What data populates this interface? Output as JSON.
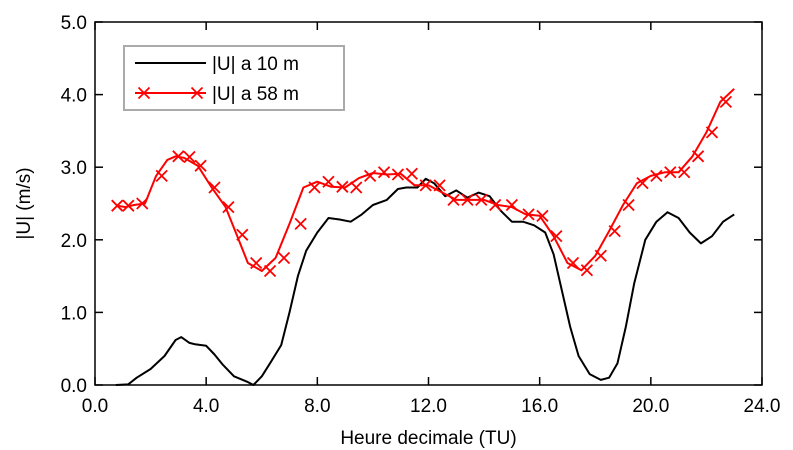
{
  "chart_data": {
    "type": "line",
    "xlabel": "Heure decimale (TU)",
    "ylabel": "|U| (m/s)",
    "xlim": [
      0,
      24
    ],
    "ylim": [
      0,
      5
    ],
    "x_ticks": [
      "0.0",
      "4.0",
      "8.0",
      "12.0",
      "16.0",
      "20.0",
      "24.0"
    ],
    "y_ticks": [
      "0.0",
      "1.0",
      "2.0",
      "3.0",
      "4.0",
      "5.0"
    ],
    "legend": {
      "position": "top-left"
    },
    "grid": false,
    "series": [
      {
        "name": "|U| a 10 m",
        "color": "#000000",
        "marker": "none",
        "points": [
          [
            0.75,
            0.0
          ],
          [
            1.2,
            0.01
          ],
          [
            1.5,
            0.1
          ],
          [
            2.0,
            0.22
          ],
          [
            2.5,
            0.4
          ],
          [
            2.9,
            0.62
          ],
          [
            3.1,
            0.66
          ],
          [
            3.4,
            0.58
          ],
          [
            3.6,
            0.56
          ],
          [
            4.0,
            0.54
          ],
          [
            4.3,
            0.42
          ],
          [
            4.6,
            0.28
          ],
          [
            5.0,
            0.12
          ],
          [
            5.5,
            0.04
          ],
          [
            5.7,
            0.0
          ],
          [
            6.0,
            0.12
          ],
          [
            6.3,
            0.3
          ],
          [
            6.7,
            0.55
          ],
          [
            7.0,
            1.0
          ],
          [
            7.3,
            1.5
          ],
          [
            7.6,
            1.85
          ],
          [
            8.0,
            2.1
          ],
          [
            8.4,
            2.3
          ],
          [
            8.8,
            2.28
          ],
          [
            9.2,
            2.25
          ],
          [
            9.6,
            2.35
          ],
          [
            10.0,
            2.48
          ],
          [
            10.5,
            2.55
          ],
          [
            10.9,
            2.7
          ],
          [
            11.2,
            2.72
          ],
          [
            11.6,
            2.72
          ],
          [
            11.9,
            2.84
          ],
          [
            12.2,
            2.78
          ],
          [
            12.6,
            2.6
          ],
          [
            13.0,
            2.68
          ],
          [
            13.4,
            2.58
          ],
          [
            13.8,
            2.65
          ],
          [
            14.2,
            2.6
          ],
          [
            14.6,
            2.4
          ],
          [
            15.0,
            2.25
          ],
          [
            15.4,
            2.25
          ],
          [
            15.8,
            2.2
          ],
          [
            16.2,
            2.1
          ],
          [
            16.5,
            1.8
          ],
          [
            16.8,
            1.3
          ],
          [
            17.1,
            0.8
          ],
          [
            17.4,
            0.4
          ],
          [
            17.8,
            0.15
          ],
          [
            18.2,
            0.07
          ],
          [
            18.5,
            0.1
          ],
          [
            18.8,
            0.3
          ],
          [
            19.1,
            0.8
          ],
          [
            19.4,
            1.4
          ],
          [
            19.8,
            2.0
          ],
          [
            20.2,
            2.25
          ],
          [
            20.6,
            2.38
          ],
          [
            21.0,
            2.3
          ],
          [
            21.4,
            2.1
          ],
          [
            21.8,
            1.95
          ],
          [
            22.2,
            2.05
          ],
          [
            22.6,
            2.25
          ],
          [
            23.0,
            2.35
          ]
        ]
      },
      {
        "name": "|U| a 58 m",
        "color": "#ff0000",
        "marker": "x",
        "points": [
          [
            0.8,
            2.47
          ],
          [
            1.1,
            2.45
          ],
          [
            1.4,
            2.48
          ],
          [
            1.8,
            2.5
          ],
          [
            2.2,
            2.88
          ],
          [
            2.6,
            3.1
          ],
          [
            2.9,
            3.15
          ],
          [
            3.2,
            3.13
          ],
          [
            3.7,
            3.02
          ],
          [
            4.2,
            2.72
          ],
          [
            4.7,
            2.45
          ],
          [
            5.1,
            2.07
          ],
          [
            5.5,
            1.68
          ],
          [
            6.0,
            1.57
          ],
          [
            6.5,
            1.75
          ],
          [
            7.0,
            2.22
          ],
          [
            7.5,
            2.72
          ],
          [
            8.0,
            2.8
          ],
          [
            8.5,
            2.73
          ],
          [
            9.0,
            2.72
          ],
          [
            9.5,
            2.85
          ],
          [
            10.0,
            2.92
          ],
          [
            10.5,
            2.9
          ],
          [
            11.0,
            2.91
          ],
          [
            11.5,
            2.75
          ],
          [
            12.0,
            2.75
          ],
          [
            12.5,
            2.65
          ],
          [
            13.0,
            2.55
          ],
          [
            13.5,
            2.55
          ],
          [
            14.0,
            2.55
          ],
          [
            14.5,
            2.48
          ],
          [
            15.0,
            2.45
          ],
          [
            15.5,
            2.35
          ],
          [
            16.0,
            2.33
          ],
          [
            16.5,
            2.05
          ],
          [
            17.0,
            1.68
          ],
          [
            17.5,
            1.58
          ],
          [
            18.0,
            1.78
          ],
          [
            18.5,
            2.12
          ],
          [
            19.0,
            2.48
          ],
          [
            19.5,
            2.78
          ],
          [
            20.0,
            2.88
          ],
          [
            20.5,
            2.93
          ],
          [
            21.0,
            2.93
          ],
          [
            21.5,
            3.15
          ],
          [
            22.0,
            3.48
          ],
          [
            22.5,
            3.9
          ],
          [
            23.0,
            4.08
          ]
        ],
        "markers": [
          [
            0.8,
            2.47
          ],
          [
            1.2,
            2.47
          ],
          [
            1.7,
            2.5
          ],
          [
            2.4,
            2.88
          ],
          [
            3.0,
            3.15
          ],
          [
            3.4,
            3.14
          ],
          [
            3.8,
            3.02
          ],
          [
            4.3,
            2.72
          ],
          [
            4.8,
            2.45
          ],
          [
            5.3,
            2.07
          ],
          [
            5.8,
            1.68
          ],
          [
            6.3,
            1.57
          ],
          [
            6.8,
            1.75
          ],
          [
            7.4,
            2.22
          ],
          [
            7.9,
            2.72
          ],
          [
            8.4,
            2.8
          ],
          [
            8.9,
            2.73
          ],
          [
            9.4,
            2.72
          ],
          [
            9.9,
            2.88
          ],
          [
            10.4,
            2.93
          ],
          [
            10.9,
            2.9
          ],
          [
            11.4,
            2.91
          ],
          [
            11.9,
            2.75
          ],
          [
            12.4,
            2.75
          ],
          [
            12.9,
            2.55
          ],
          [
            13.4,
            2.55
          ],
          [
            13.9,
            2.55
          ],
          [
            14.4,
            2.48
          ],
          [
            15.0,
            2.48
          ],
          [
            15.6,
            2.35
          ],
          [
            16.1,
            2.33
          ],
          [
            16.6,
            2.05
          ],
          [
            17.2,
            1.68
          ],
          [
            17.7,
            1.58
          ],
          [
            18.2,
            1.78
          ],
          [
            18.7,
            2.12
          ],
          [
            19.2,
            2.48
          ],
          [
            19.7,
            2.78
          ],
          [
            20.2,
            2.88
          ],
          [
            20.7,
            2.93
          ],
          [
            21.2,
            2.93
          ],
          [
            21.7,
            3.15
          ],
          [
            22.2,
            3.48
          ],
          [
            22.7,
            3.9
          ]
        ]
      }
    ]
  }
}
